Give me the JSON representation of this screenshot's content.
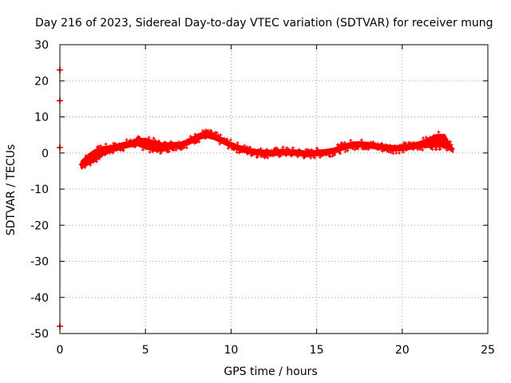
{
  "chart_data": {
    "type": "scatter",
    "title": "Day 216 of 2023, Sidereal Day-to-day VTEC variation (SDTVAR) for receiver mung",
    "xlabel": "GPS time / hours",
    "ylabel": "SDTVAR / TECUs",
    "xlim": [
      0,
      25
    ],
    "ylim": [
      -50,
      30
    ],
    "xticks": [
      0,
      5,
      10,
      15,
      20,
      25
    ],
    "yticks": [
      -50,
      -40,
      -30,
      -20,
      -10,
      0,
      10,
      20,
      30
    ],
    "grid": true,
    "color": "#ff0000",
    "isolated_points": [
      {
        "x": 0.0,
        "y": 23
      },
      {
        "x": 0.0,
        "y": 14.5
      },
      {
        "x": 0.0,
        "y": 1.5
      },
      {
        "x": 0.0,
        "y": -48
      }
    ],
    "band_profile": [
      {
        "x": 1.2,
        "y": -3.2,
        "half_width": 1.0
      },
      {
        "x": 1.6,
        "y": -2.0,
        "half_width": 1.6
      },
      {
        "x": 2.0,
        "y": -0.8,
        "half_width": 1.8
      },
      {
        "x": 2.5,
        "y": 0.5,
        "half_width": 1.4
      },
      {
        "x": 3.0,
        "y": 1.2,
        "half_width": 1.0
      },
      {
        "x": 3.5,
        "y": 1.8,
        "half_width": 1.0
      },
      {
        "x": 4.0,
        "y": 2.4,
        "half_width": 1.0
      },
      {
        "x": 4.5,
        "y": 3.0,
        "half_width": 1.1
      },
      {
        "x": 5.0,
        "y": 2.6,
        "half_width": 1.6
      },
      {
        "x": 5.5,
        "y": 2.0,
        "half_width": 1.6
      },
      {
        "x": 6.0,
        "y": 1.6,
        "half_width": 1.3
      },
      {
        "x": 6.5,
        "y": 2.0,
        "half_width": 1.0
      },
      {
        "x": 7.0,
        "y": 2.2,
        "half_width": 0.9
      },
      {
        "x": 7.5,
        "y": 3.0,
        "half_width": 0.9
      },
      {
        "x": 8.0,
        "y": 4.3,
        "half_width": 1.0
      },
      {
        "x": 8.5,
        "y": 5.2,
        "half_width": 1.0
      },
      {
        "x": 9.0,
        "y": 4.6,
        "half_width": 1.0
      },
      {
        "x": 9.5,
        "y": 3.4,
        "half_width": 0.9
      },
      {
        "x": 10.0,
        "y": 2.2,
        "half_width": 0.9
      },
      {
        "x": 10.5,
        "y": 1.3,
        "half_width": 0.9
      },
      {
        "x": 11.0,
        "y": 0.6,
        "half_width": 0.9
      },
      {
        "x": 11.5,
        "y": 0.2,
        "half_width": 0.9
      },
      {
        "x": 12.0,
        "y": 0.0,
        "half_width": 0.9
      },
      {
        "x": 12.5,
        "y": 0.0,
        "half_width": 0.9
      },
      {
        "x": 13.0,
        "y": 0.3,
        "half_width": 0.9
      },
      {
        "x": 13.5,
        "y": 0.2,
        "half_width": 0.9
      },
      {
        "x": 14.0,
        "y": 0.0,
        "half_width": 0.9
      },
      {
        "x": 14.5,
        "y": -0.3,
        "half_width": 0.9
      },
      {
        "x": 15.0,
        "y": 0.0,
        "half_width": 0.9
      },
      {
        "x": 15.5,
        "y": 0.2,
        "half_width": 0.9
      },
      {
        "x": 16.0,
        "y": 0.6,
        "half_width": 0.9
      },
      {
        "x": 16.5,
        "y": 1.5,
        "half_width": 0.9
      },
      {
        "x": 17.0,
        "y": 2.2,
        "half_width": 0.9
      },
      {
        "x": 17.5,
        "y": 2.4,
        "half_width": 0.9
      },
      {
        "x": 18.0,
        "y": 2.2,
        "half_width": 0.9
      },
      {
        "x": 18.5,
        "y": 1.8,
        "half_width": 0.9
      },
      {
        "x": 19.0,
        "y": 1.5,
        "half_width": 0.9
      },
      {
        "x": 19.5,
        "y": 1.3,
        "half_width": 0.9
      },
      {
        "x": 20.0,
        "y": 1.4,
        "half_width": 0.9
      },
      {
        "x": 20.5,
        "y": 1.8,
        "half_width": 0.9
      },
      {
        "x": 21.0,
        "y": 2.3,
        "half_width": 1.0
      },
      {
        "x": 21.5,
        "y": 2.8,
        "half_width": 1.4
      },
      {
        "x": 22.0,
        "y": 3.4,
        "half_width": 1.9
      },
      {
        "x": 22.5,
        "y": 3.4,
        "half_width": 1.9
      },
      {
        "x": 23.0,
        "y": 0.5,
        "half_width": 0.6
      }
    ]
  }
}
